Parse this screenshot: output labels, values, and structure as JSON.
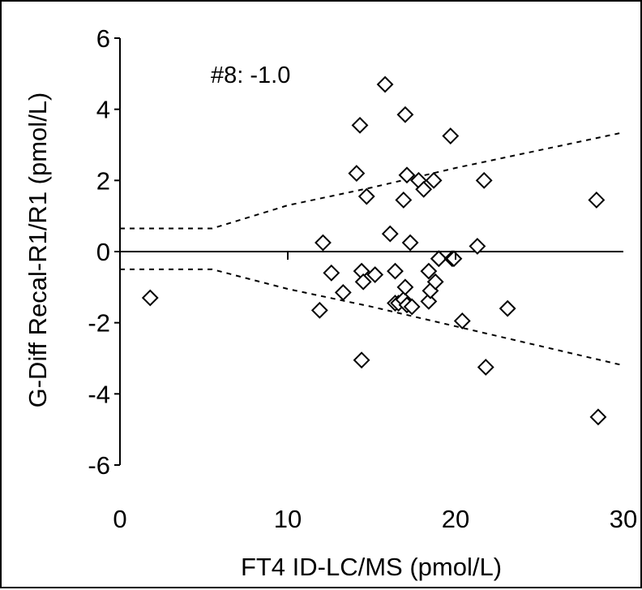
{
  "chart_data": {
    "type": "scatter",
    "title": "",
    "annotation": "#8: -1.0",
    "xlabel": "FT4 ID-LC/MS (pmol/L)",
    "ylabel": "G-Diff Recal-R1/R1 (pmol/L)",
    "xlim": [
      0,
      30
    ],
    "ylim": [
      -6,
      6
    ],
    "x_ticks": [
      0,
      10,
      20,
      30
    ],
    "y_ticks": [
      -6,
      -4,
      -2,
      0,
      2,
      4,
      6
    ],
    "x_tick_labels": [
      "0",
      "10",
      "20",
      "30"
    ],
    "y_tick_labels": [
      "-6",
      "-4",
      "-2",
      "0",
      "2",
      "4",
      "6"
    ],
    "grid": false,
    "legend": "none",
    "marker": "open-diamond",
    "zero_line": 0,
    "limit_lines": {
      "upper": {
        "x": [
          0,
          5.5,
          10,
          15,
          20,
          25,
          30
        ],
        "y": [
          0.65,
          0.65,
          1.3,
          1.8,
          2.35,
          2.85,
          3.35
        ]
      },
      "lower": {
        "x": [
          0,
          5.5,
          10,
          15,
          20,
          25,
          30
        ],
        "y": [
          -0.5,
          -0.5,
          -1.05,
          -1.55,
          -2.1,
          -2.65,
          -3.2
        ]
      }
    },
    "series": [
      {
        "x": [
          1.8,
          11.9,
          12.1,
          12.6,
          13.3,
          14.1,
          14.3,
          14.4,
          14.4,
          14.5,
          14.7,
          15.2,
          15.8,
          16.1,
          16.4,
          16.4,
          16.6,
          16.9,
          16.9,
          17.0,
          17.0,
          17.1,
          17.1,
          17.3,
          17.4,
          17.8,
          18.1,
          18.4,
          18.4,
          18.5,
          18.7,
          18.8,
          19.0,
          19.0,
          19.7,
          19.8,
          19.9,
          20.4,
          21.3,
          21.7,
          21.8,
          23.1,
          28.4,
          28.5
        ],
        "y": [
          -1.3,
          -1.65,
          0.25,
          -0.6,
          -1.15,
          2.2,
          3.55,
          -0.55,
          -3.05,
          -0.85,
          1.55,
          -0.65,
          4.7,
          0.5,
          -0.55,
          -1.45,
          -1.45,
          -1.35,
          1.45,
          3.85,
          -1.0,
          2.15,
          -1.5,
          0.25,
          -1.55,
          2.0,
          1.75,
          -0.55,
          -1.4,
          -1.1,
          2.0,
          -0.85,
          -0.2,
          -0.2,
          3.25,
          -0.2,
          -0.2,
          -1.95,
          0.15,
          2.0,
          -3.25,
          -1.6,
          1.45,
          -4.65
        ]
      }
    ]
  }
}
